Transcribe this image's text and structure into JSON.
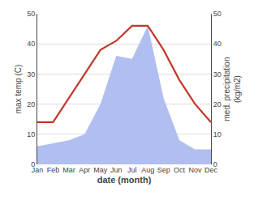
{
  "chart_data": {
    "type": "line",
    "categories": [
      "Jan",
      "Feb",
      "Mar",
      "Apr",
      "May",
      "Jun",
      "Jul",
      "Aug",
      "Sep",
      "Oct",
      "Nov",
      "Dec"
    ],
    "xlabel": "date (month)",
    "ylabel": "max temp (C)",
    "y2label": "med. precipitation\n(kg/m2)",
    "series": [
      {
        "type": "area",
        "color": "#b0bef0",
        "axis": "y2",
        "values": [
          6,
          7,
          8,
          10,
          20,
          36,
          35,
          46,
          22,
          8,
          5,
          5
        ]
      },
      {
        "type": "line",
        "color": "#c0392b",
        "values": [
          14,
          14,
          22,
          30,
          38,
          41,
          46,
          46,
          38,
          28,
          20,
          14
        ]
      }
    ],
    "ylim": [
      0,
      50
    ],
    "yticks": [
      0,
      10,
      20,
      30,
      40,
      50
    ],
    "y2lim": [
      0,
      50
    ],
    "y2ticks": [
      0,
      10,
      20,
      30,
      40,
      50
    ],
    "grid": true
  }
}
